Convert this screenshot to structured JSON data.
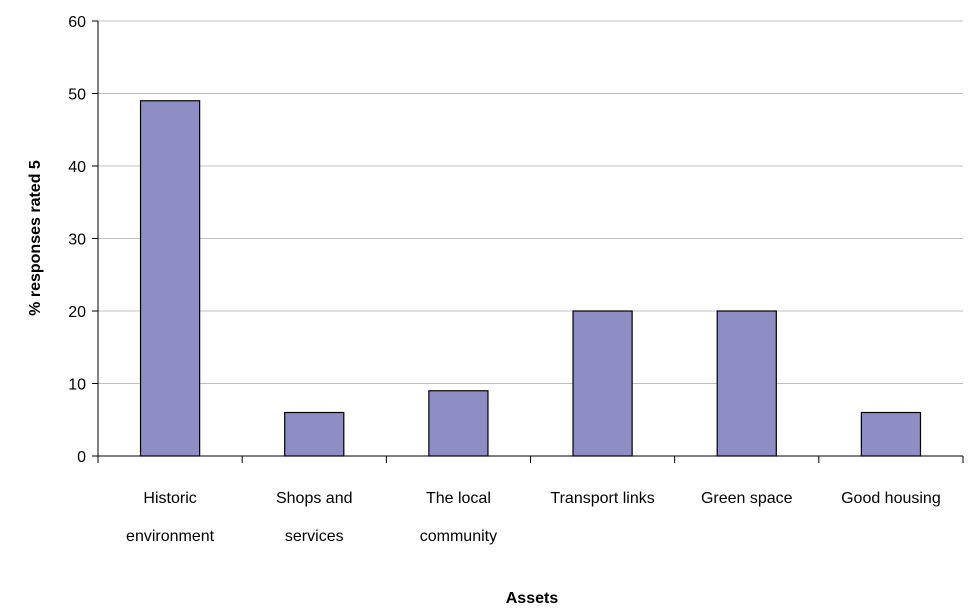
{
  "chart_data": {
    "type": "bar",
    "title": "",
    "xlabel": "Assets",
    "ylabel": "% responses rated 5",
    "ylim": [
      0,
      60
    ],
    "yticks": [
      0,
      10,
      20,
      30,
      40,
      50,
      60
    ],
    "grid": true,
    "legend": "none",
    "categories": [
      [
        "Historic",
        "environment"
      ],
      [
        "Shops and",
        "services"
      ],
      [
        "The local",
        "community"
      ],
      [
        "Transport links"
      ],
      [
        "Green space"
      ],
      [
        "Good housing"
      ]
    ],
    "values": [
      49,
      6,
      9,
      20,
      20,
      6
    ],
    "colors": {
      "bar_fill": "#8e8ec4",
      "bar_stroke": "#000000",
      "grid": "#c0c0c0",
      "axis": "#000000"
    }
  }
}
